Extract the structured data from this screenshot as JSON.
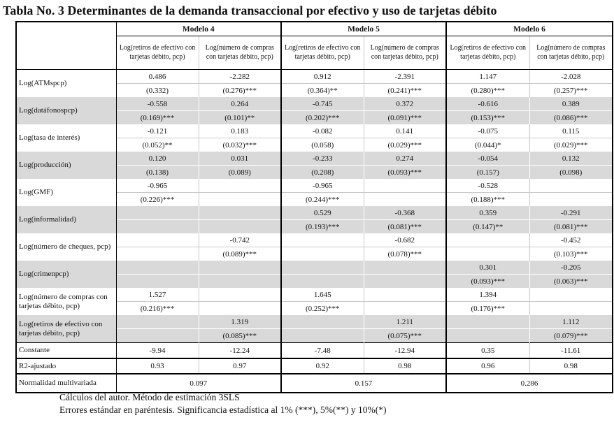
{
  "title": "Tabla No. 3 Determinantes de la demanda transaccional por efectivo y uso de tarjetas débito",
  "table": {
    "models": [
      {
        "label": "Modelo 4"
      },
      {
        "label": "Modelo 5"
      },
      {
        "label": "Modelo 6"
      }
    ],
    "sub_columns": {
      "retiros": "Log(retiros de efectivo con tarjetas débito, pcp)",
      "compras": "Log(número de compras con tarjetas débito, pcp)"
    },
    "rows": [
      {
        "label": "Log(ATMspcp)",
        "shaded": false,
        "cells": [
          {
            "coef": "0.486",
            "se": "(0.332)"
          },
          {
            "coef": "-2.282",
            "se": "(0.276)***"
          },
          {
            "coef": "0.912",
            "se": "(0.364)**"
          },
          {
            "coef": "-2.391",
            "se": "(0.241)***"
          },
          {
            "coef": "1.147",
            "se": "(0.280)***"
          },
          {
            "coef": "-2.028",
            "se": "(0.257)***"
          }
        ]
      },
      {
        "label": "Log(datáfonospcp)",
        "shaded": true,
        "cells": [
          {
            "coef": "-0.558",
            "se": "(0.169)***"
          },
          {
            "coef": "0.264",
            "se": "(0.101)**"
          },
          {
            "coef": "-0.745",
            "se": "(0.202)***"
          },
          {
            "coef": "0.372",
            "se": "(0.091)***"
          },
          {
            "coef": "-0.616",
            "se": "(0.153)***"
          },
          {
            "coef": "0.389",
            "se": "(0.086)***"
          }
        ]
      },
      {
        "label": "Log(tasa de interés)",
        "shaded": false,
        "cells": [
          {
            "coef": "-0.121",
            "se": "(0.052)**"
          },
          {
            "coef": "0.183",
            "se": "(0.032)***"
          },
          {
            "coef": "-0.082",
            "se": "(0.058)"
          },
          {
            "coef": "0.141",
            "se": "(0.029)***"
          },
          {
            "coef": "-0.075",
            "se": "(0.044)*"
          },
          {
            "coef": "0.115",
            "se": "(0.029)***"
          }
        ]
      },
      {
        "label": "Log(producción)",
        "shaded": true,
        "cells": [
          {
            "coef": "0.120",
            "se": "(0.138)"
          },
          {
            "coef": "0.031",
            "se": "(0.089)"
          },
          {
            "coef": "-0.233",
            "se": "(0.208)"
          },
          {
            "coef": "0.274",
            "se": "(0.093)***"
          },
          {
            "coef": "-0.054",
            "se": "(0.157)"
          },
          {
            "coef": "0.132",
            "se": "(0.098)"
          }
        ]
      },
      {
        "label": "Log(GMF)",
        "shaded": false,
        "cells": [
          {
            "coef": "-0.965",
            "se": "(0.226)***"
          },
          {
            "coef": "",
            "se": ""
          },
          {
            "coef": "-0.965",
            "se": "(0.244)***"
          },
          {
            "coef": "",
            "se": ""
          },
          {
            "coef": "-0.528",
            "se": "(0.188)***"
          },
          {
            "coef": "",
            "se": ""
          }
        ]
      },
      {
        "label": "Log(informalidad)",
        "shaded": true,
        "cells": [
          {
            "coef": "",
            "se": ""
          },
          {
            "coef": "",
            "se": ""
          },
          {
            "coef": "0.529",
            "se": "(0.193)***"
          },
          {
            "coef": "-0.368",
            "se": "(0.081)***"
          },
          {
            "coef": "0.359",
            "se": "(0.147)**"
          },
          {
            "coef": "-0.291",
            "se": "(0.081)***"
          }
        ]
      },
      {
        "label": "Log(número de cheques, pcp)",
        "shaded": false,
        "cells": [
          {
            "coef": "",
            "se": ""
          },
          {
            "coef": "-0.742",
            "se": "(0.089)***"
          },
          {
            "coef": "",
            "se": ""
          },
          {
            "coef": "-0.682",
            "se": "(0.078)***"
          },
          {
            "coef": "",
            "se": ""
          },
          {
            "coef": "-0.452",
            "se": "(0.103)***"
          }
        ]
      },
      {
        "label": "Log(crimenpcp)",
        "shaded": true,
        "cells": [
          {
            "coef": "",
            "se": ""
          },
          {
            "coef": "",
            "se": ""
          },
          {
            "coef": "",
            "se": ""
          },
          {
            "coef": "",
            "se": ""
          },
          {
            "coef": "0.301",
            "se": "(0.093)***"
          },
          {
            "coef": "-0.205",
            "se": "(0.063)***"
          }
        ]
      },
      {
        "label": "Log(número de compras con tarjetas débito, pcp)",
        "shaded": false,
        "cells": [
          {
            "coef": "1.527",
            "se": "(0.216)***"
          },
          {
            "coef": "",
            "se": ""
          },
          {
            "coef": "1.645",
            "se": "(0.252)***"
          },
          {
            "coef": "",
            "se": ""
          },
          {
            "coef": "1.394",
            "se": "(0.176)***"
          },
          {
            "coef": "",
            "se": ""
          }
        ]
      },
      {
        "label": "Log(retiros de efectivo con tarjetas débito, pcp)",
        "shaded": true,
        "cells": [
          {
            "coef": "",
            "se": ""
          },
          {
            "coef": "1.319",
            "se": "(0.085)***"
          },
          {
            "coef": "",
            "se": ""
          },
          {
            "coef": "1.211",
            "se": "(0.075)***"
          },
          {
            "coef": "",
            "se": ""
          },
          {
            "coef": "1.112",
            "se": "(0.079)***"
          }
        ]
      }
    ],
    "constante": {
      "label": "Constante",
      "values": [
        "-9.94",
        "-12.24",
        "-7.48",
        "-12.94",
        "0.35",
        "-11.61"
      ]
    },
    "r2": {
      "label": "R2-ajustado",
      "values": [
        "0.93",
        "0.97",
        "0.92",
        "0.98",
        "0.96",
        "0.98"
      ]
    },
    "normalidad": {
      "label": "Normalidad multivariada",
      "values": [
        "0.097",
        "0.157",
        "0.286"
      ]
    }
  },
  "notes": [
    "Cálculos del autor. Método de estimación 3SLS",
    "Errores estándar en paréntesis. Significancia estadística al 1% (***), 5%(**) y 10%(*)"
  ],
  "colors": {
    "row_shade": "#d9d9d9",
    "grid_light": "#c9c9c9",
    "border": "#000000",
    "text": "#111111"
  }
}
